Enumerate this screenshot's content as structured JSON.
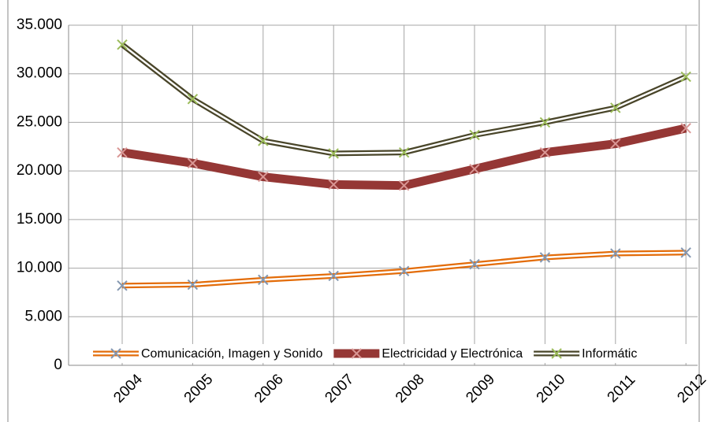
{
  "chart_data": {
    "type": "line",
    "categories": [
      "2004",
      "2005",
      "2006",
      "2007",
      "2008",
      "2009",
      "2010",
      "2011",
      "2012"
    ],
    "series": [
      {
        "name": "Comunicación, Imagen y Sonido",
        "color": "#e36c09",
        "marker_color": "#8497b0",
        "style": "double",
        "values": [
          8200,
          8300,
          8800,
          9200,
          9700,
          10400,
          11100,
          11500,
          11600
        ]
      },
      {
        "name": "Electricidad y Electrónica",
        "color": "#953735",
        "marker_color": "#d99694",
        "style": "thick",
        "values": [
          21900,
          20800,
          19400,
          18600,
          18500,
          20200,
          21900,
          22800,
          24400
        ]
      },
      {
        "name": "Informátic",
        "color": "#494529",
        "marker_color": "#9bbb59",
        "style": "double",
        "values": [
          33000,
          27400,
          23100,
          21800,
          21900,
          23700,
          25000,
          26500,
          29700
        ]
      }
    ],
    "ylim": [
      0,
      35000
    ],
    "yticks": [
      {
        "value": 0,
        "label": "0"
      },
      {
        "value": 5000,
        "label": "5.000"
      },
      {
        "value": 10000,
        "label": "10.000"
      },
      {
        "value": 15000,
        "label": "15.000"
      },
      {
        "value": 20000,
        "label": "20.000"
      },
      {
        "value": 25000,
        "label": "25.000"
      },
      {
        "value": 30000,
        "label": "30.000"
      },
      {
        "value": 35000,
        "label": "35.000"
      }
    ],
    "grid": true,
    "legend": "bottom"
  }
}
